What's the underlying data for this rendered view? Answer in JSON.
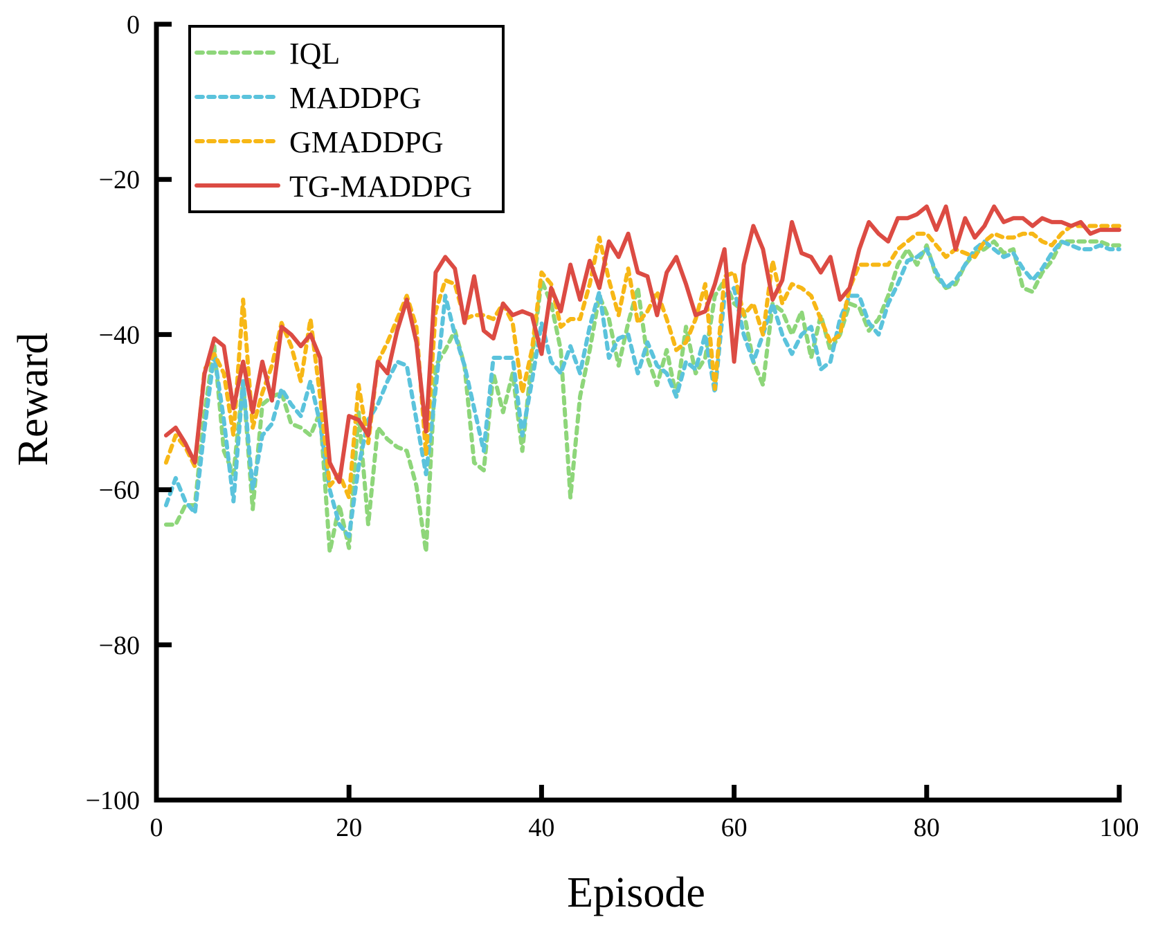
{
  "chart_data": {
    "type": "line",
    "title": "",
    "xlabel": "Episode",
    "ylabel": "Reward",
    "xlim": [
      0,
      100
    ],
    "ylim": [
      -100,
      0
    ],
    "xticks": [
      0,
      20,
      40,
      60,
      80,
      100
    ],
    "yticks": [
      0,
      -20,
      -40,
      -60,
      -80,
      -100
    ],
    "xtick_labels": [
      "0",
      "20",
      "40",
      "60",
      "80",
      "100"
    ],
    "ytick_labels": [
      "0",
      "−20",
      "−40",
      "−60",
      "−80",
      "−100"
    ],
    "grid": false,
    "legend_position": "top-left",
    "x": [
      1,
      2,
      3,
      4,
      5,
      6,
      7,
      8,
      9,
      10,
      11,
      12,
      13,
      14,
      15,
      16,
      17,
      18,
      19,
      20,
      21,
      22,
      23,
      24,
      25,
      26,
      27,
      28,
      29,
      30,
      31,
      32,
      33,
      34,
      35,
      36,
      37,
      38,
      39,
      40,
      41,
      42,
      43,
      44,
      45,
      46,
      47,
      48,
      49,
      50,
      51,
      52,
      53,
      54,
      55,
      56,
      57,
      58,
      59,
      60,
      61,
      62,
      63,
      64,
      65,
      66,
      67,
      68,
      69,
      70,
      71,
      72,
      73,
      74,
      75,
      76,
      77,
      78,
      79,
      80,
      81,
      82,
      83,
      84,
      85,
      86,
      87,
      88,
      89,
      90,
      91,
      92,
      93,
      94,
      95,
      96,
      97,
      98,
      99,
      100
    ],
    "series": [
      {
        "name": "IQL",
        "color": "#8ed67a",
        "style": "dotted",
        "values": [
          -64.5,
          -64.5,
          -62,
          -62,
          -50,
          -41.5,
          -55,
          -58,
          -46,
          -62.5,
          -49,
          -48,
          -47.5,
          -51.5,
          -52,
          -53,
          -50,
          -68,
          -62,
          -67.5,
          -50,
          -64.5,
          -52,
          -53.5,
          -54.5,
          -55,
          -59.5,
          -68,
          -44,
          -42,
          -39.5,
          -44,
          -56.5,
          -57.5,
          -45,
          -50,
          -45,
          -55,
          -43,
          -33,
          -36,
          -42,
          -61,
          -48,
          -42,
          -35,
          -38,
          -44,
          -38.5,
          -34,
          -43,
          -46.5,
          -42,
          -48,
          -39,
          -45,
          -43,
          -35,
          -33,
          -36,
          -37,
          -43.5,
          -46.5,
          -36,
          -37,
          -40,
          -37,
          -43,
          -37.5,
          -42,
          -40,
          -36,
          -36.5,
          -39.5,
          -38,
          -35,
          -31,
          -29,
          -31,
          -28.5,
          -32.5,
          -34,
          -33.5,
          -31,
          -29.5,
          -29,
          -28,
          -29.5,
          -29,
          -34,
          -34.5,
          -32,
          -30.5,
          -28,
          -28,
          -28,
          -28,
          -28,
          -28.5,
          -28.5
        ]
      },
      {
        "name": "MADDPG",
        "color": "#5bc3dc",
        "style": "dotted",
        "values": [
          -62,
          -58.5,
          -61.5,
          -63,
          -52,
          -42.5,
          -51,
          -61.5,
          -46,
          -60,
          -53,
          -51.5,
          -47,
          -49,
          -50.5,
          -46,
          -51.5,
          -60,
          -64.5,
          -66,
          -57,
          -51,
          -49,
          -46,
          -43.5,
          -44,
          -51,
          -58,
          -47,
          -35,
          -40,
          -44,
          -49.5,
          -55,
          -43,
          -43,
          -43,
          -53,
          -46,
          -38.5,
          -43.5,
          -45,
          -41.5,
          -45,
          -39,
          -34.5,
          -43,
          -40.5,
          -40,
          -45,
          -41,
          -44,
          -45,
          -48,
          -43.5,
          -44.5,
          -40,
          -47.5,
          -35,
          -34,
          -40,
          -43.5,
          -40,
          -36,
          -40,
          -42.5,
          -40,
          -39,
          -44.5,
          -43.5,
          -38,
          -35,
          -35,
          -38.5,
          -40,
          -36,
          -33.5,
          -30.5,
          -30,
          -29,
          -32,
          -34,
          -33,
          -31,
          -29,
          -28,
          -29,
          -30,
          -29.5,
          -31.5,
          -33,
          -31.5,
          -29.5,
          -28,
          -28.5,
          -29,
          -29,
          -28.5,
          -29,
          -29
        ]
      },
      {
        "name": "GMADDPG",
        "color": "#f7b716",
        "style": "dotted",
        "values": [
          -56.5,
          -53,
          -54.5,
          -57,
          -44.5,
          -42.5,
          -45,
          -53,
          -35.5,
          -52,
          -47.5,
          -44,
          -38.5,
          -41.5,
          -46,
          -38,
          -48,
          -59.5,
          -58,
          -61,
          -46.5,
          -54,
          -43.5,
          -41,
          -38,
          -35,
          -39,
          -55.5,
          -37,
          -33,
          -33.5,
          -38,
          -37.5,
          -37.5,
          -38,
          -36,
          -38.5,
          -47.5,
          -42,
          -32,
          -33.5,
          -39,
          -38,
          -38,
          -33.5,
          -27.5,
          -33,
          -37.5,
          -31.5,
          -38.5,
          -37,
          -34.5,
          -38,
          -42,
          -41,
          -38,
          -33.5,
          -47,
          -32.5,
          -32,
          -37.5,
          -36,
          -40,
          -30.5,
          -36,
          -33.5,
          -34,
          -35,
          -38,
          -41,
          -40,
          -34,
          -31,
          -31,
          -31,
          -31,
          -29,
          -28,
          -27,
          -27,
          -28.5,
          -30,
          -29,
          -29.5,
          -30,
          -28,
          -27,
          -27.5,
          -27.5,
          -27,
          -27,
          -28,
          -28.5,
          -27,
          -26,
          -26,
          -26,
          -26,
          -26,
          -26
        ]
      },
      {
        "name": "TG-MADDPG",
        "color": "#dc4b43",
        "style": "solid",
        "values": [
          -53,
          -52,
          -54,
          -56.5,
          -45,
          -40.5,
          -41.5,
          -49.5,
          -43.5,
          -50,
          -43.5,
          -48.5,
          -39,
          -40,
          -41.5,
          -40,
          -43,
          -56.5,
          -59,
          -50.5,
          -51,
          -53,
          -43.5,
          -45,
          -39.5,
          -35.5,
          -41,
          -52.5,
          -32,
          -30,
          -31.5,
          -38.5,
          -32.5,
          -39.5,
          -40.5,
          -36,
          -37.5,
          -37,
          -37.5,
          -42.5,
          -34,
          -37,
          -31,
          -35.5,
          -30.5,
          -34,
          -28,
          -30,
          -27,
          -32,
          -32.5,
          -37.5,
          -32,
          -30,
          -33.5,
          -37.5,
          -37,
          -33.5,
          -29,
          -43.5,
          -31,
          -26,
          -29,
          -35.5,
          -33,
          -25.5,
          -29.5,
          -30,
          -32,
          -30,
          -35.5,
          -34,
          -29,
          -25.5,
          -27,
          -28,
          -25,
          -25,
          -24.5,
          -23.5,
          -26.5,
          -23.5,
          -29,
          -25,
          -27.5,
          -26,
          -23.5,
          -25.5,
          -25,
          -25,
          -26,
          -25,
          -25.5,
          -25.5,
          -26,
          -25.5,
          -27,
          -26.5,
          -26.5,
          -26.5
        ]
      }
    ]
  }
}
